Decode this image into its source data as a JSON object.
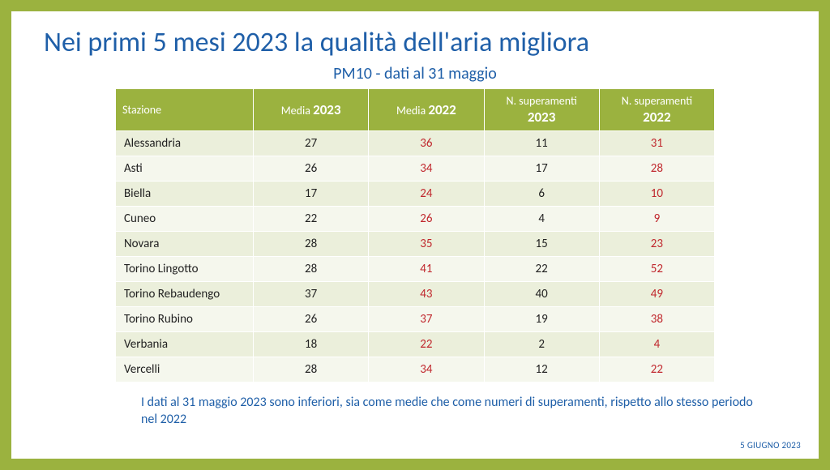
{
  "title": "Nei primi 5 mesi 2023 la qualità dell'aria migliora",
  "subtitle": "PM10 - dati al 31 maggio",
  "columns": {
    "station": "Stazione",
    "media2023_pre": "Media ",
    "media2023_yr": "2023",
    "media2022_pre": "Media ",
    "media2022_yr": "2022",
    "sup2023_line1": "N. superamenti",
    "sup2023_line2": "2023",
    "sup2022_line1": "N. superamenti",
    "sup2022_line2": "2022"
  },
  "rows": [
    {
      "station": "Alessandria",
      "m23": "27",
      "m22": "36",
      "s23": "11",
      "s22": "31"
    },
    {
      "station": "Asti",
      "m23": "26",
      "m22": "34",
      "s23": "17",
      "s22": "28"
    },
    {
      "station": "Biella",
      "m23": "17",
      "m22": "24",
      "s23": "6",
      "s22": "10"
    },
    {
      "station": "Cuneo",
      "m23": "22",
      "m22": "26",
      "s23": "4",
      "s22": "9"
    },
    {
      "station": "Novara",
      "m23": "28",
      "m22": "35",
      "s23": "15",
      "s22": "23"
    },
    {
      "station": "Torino Lingotto",
      "m23": "28",
      "m22": "41",
      "s23": "22",
      "s22": "52"
    },
    {
      "station": "Torino Rebaudengo",
      "m23": "37",
      "m22": "43",
      "s23": "40",
      "s22": "49"
    },
    {
      "station": "Torino Rubino",
      "m23": "26",
      "m22": "37",
      "s23": "19",
      "s22": "38"
    },
    {
      "station": "Verbania",
      "m23": "18",
      "m22": "22",
      "s23": "2",
      "s22": "4"
    },
    {
      "station": "Vercelli",
      "m23": "28",
      "m22": "34",
      "s23": "12",
      "s22": "22"
    }
  ],
  "footnote": "I dati al 31 maggio 2023 sono inferiori, sia come medie che come numeri di superamenti, rispetto allo stesso periodo nel  2022",
  "datemark": "5 GIUGNO 2023",
  "colors": {
    "accent": "#9bb23f",
    "blue": "#1f5fa8",
    "red": "#c0272d",
    "row_odd": "#ebefdb",
    "row_even": "#f5f7ed"
  }
}
